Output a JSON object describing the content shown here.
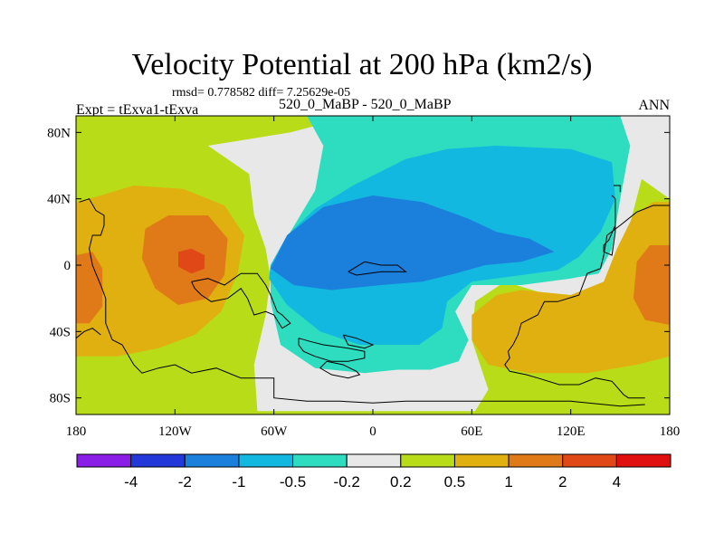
{
  "title": "Velocity Potential at 200 hPa (km2/s)",
  "subtitle": "rmsd= 0.778582  diff= 7.25629e-05",
  "left_label": "Expt = tExva1-tExva",
  "center_label": "520_0_MaBP - 520_0_MaBP",
  "right_label": "ANN",
  "chart_data": {
    "type": "heatmap",
    "subtype": "filled-contour-map",
    "title": "Velocity Potential at 200 hPa (km2/s)",
    "xlabel": "",
    "ylabel": "",
    "xlim": [
      -180,
      180
    ],
    "ylim": [
      -90,
      90
    ],
    "x_ticks": [
      {
        "value": -180,
        "label": "180"
      },
      {
        "value": -120,
        "label": "120W"
      },
      {
        "value": -60,
        "label": "60W"
      },
      {
        "value": 0,
        "label": "0"
      },
      {
        "value": 60,
        "label": "60E"
      },
      {
        "value": 120,
        "label": "120E"
      },
      {
        "value": 180,
        "label": "180"
      }
    ],
    "y_ticks": [
      {
        "value": 80,
        "label": "80N"
      },
      {
        "value": 40,
        "label": "40N"
      },
      {
        "value": 0,
        "label": "0"
      },
      {
        "value": -40,
        "label": "40S"
      },
      {
        "value": -80,
        "label": "80S"
      }
    ],
    "contour_levels": [
      -4,
      -2,
      -1,
      -0.5,
      -0.2,
      0.2,
      0.5,
      1,
      2,
      4
    ],
    "level_labels": [
      "-4",
      "-2",
      "-1",
      "-0.5",
      "-0.2",
      "0.2",
      "0.5",
      "1",
      "2",
      "4"
    ],
    "bin_colors": [
      "#8a1ee6",
      "#2338d8",
      "#1b7fdc",
      "#12b8e0",
      "#2edcc0",
      "#e8e8e8",
      "#b8dc18",
      "#e0b010",
      "#e07a18",
      "#e04818",
      "#e01010"
    ],
    "background_color": "#b8dc18",
    "regions": [
      {
        "level": "0.2..0.5 (neutral)",
        "color": "#e8e8e8",
        "points": [
          [
            -100,
            72
          ],
          [
            -50,
            80
          ],
          [
            -12,
            90
          ],
          [
            55,
            90
          ],
          [
            90,
            90
          ],
          [
            160,
            90
          ],
          [
            180,
            90
          ],
          [
            180,
            40
          ],
          [
            163,
            52
          ],
          [
            152,
            10
          ],
          [
            145,
            -20
          ],
          [
            120,
            -22
          ],
          [
            80,
            -10
          ],
          [
            62,
            -22
          ],
          [
            60,
            -45
          ],
          [
            70,
            -75
          ],
          [
            62,
            -88
          ],
          [
            -70,
            -88
          ],
          [
            -72,
            -60
          ],
          [
            -65,
            -30
          ],
          [
            -62,
            -8
          ],
          [
            -65,
            10
          ],
          [
            -72,
            30
          ],
          [
            -75,
            55
          ]
        ]
      },
      {
        "level": "-0.5..-0.2",
        "color": "#2edcc0",
        "points": [
          [
            -40,
            90
          ],
          [
            150,
            90
          ],
          [
            156,
            72
          ],
          [
            150,
            40
          ],
          [
            145,
            10
          ],
          [
            137,
            -5
          ],
          [
            120,
            -8
          ],
          [
            90,
            -12
          ],
          [
            60,
            -12
          ],
          [
            50,
            -28
          ],
          [
            58,
            -45
          ],
          [
            52,
            -58
          ],
          [
            35,
            -63
          ],
          [
            15,
            -63
          ],
          [
            -5,
            -65
          ],
          [
            -35,
            -62
          ],
          [
            -56,
            -48
          ],
          [
            -62,
            -22
          ],
          [
            -62,
            0
          ],
          [
            -50,
            20
          ],
          [
            -35,
            45
          ],
          [
            -30,
            72
          ]
        ]
      },
      {
        "level": "-1..-0.5",
        "color": "#12b8e0",
        "points": [
          [
            -62,
            0
          ],
          [
            -52,
            18
          ],
          [
            -35,
            34
          ],
          [
            -12,
            48
          ],
          [
            20,
            64
          ],
          [
            45,
            70
          ],
          [
            75,
            72
          ],
          [
            120,
            70
          ],
          [
            145,
            62
          ],
          [
            147,
            40
          ],
          [
            138,
            20
          ],
          [
            125,
            5
          ],
          [
            112,
            -3
          ],
          [
            90,
            -6
          ],
          [
            60,
            -10
          ],
          [
            45,
            -22
          ],
          [
            42,
            -38
          ],
          [
            28,
            -48
          ],
          [
            -8,
            -48
          ],
          [
            -32,
            -40
          ],
          [
            -52,
            -24
          ],
          [
            -63,
            -8
          ]
        ]
      },
      {
        "level": "-2..-1",
        "color": "#1b7fdc",
        "points": [
          [
            -62,
            -2
          ],
          [
            -52,
            18
          ],
          [
            -30,
            35
          ],
          [
            0,
            42
          ],
          [
            30,
            38
          ],
          [
            58,
            28
          ],
          [
            75,
            20
          ],
          [
            95,
            16
          ],
          [
            110,
            8
          ],
          [
            90,
            2
          ],
          [
            68,
            0
          ],
          [
            50,
            -5
          ],
          [
            30,
            -10
          ],
          [
            5,
            -12
          ],
          [
            -25,
            -15
          ],
          [
            -48,
            -12
          ]
        ]
      },
      {
        "level": "0.5..1 west",
        "color": "#e0b010",
        "points": [
          [
            -180,
            38
          ],
          [
            -165,
            42
          ],
          [
            -145,
            48
          ],
          [
            -115,
            46
          ],
          [
            -90,
            36
          ],
          [
            -78,
            18
          ],
          [
            -82,
            -5
          ],
          [
            -92,
            -28
          ],
          [
            -108,
            -42
          ],
          [
            -130,
            -50
          ],
          [
            -155,
            -55
          ],
          [
            -180,
            -55
          ]
        ]
      },
      {
        "level": "1..2 west core",
        "color": "#e07a18",
        "points": [
          [
            -138,
            22
          ],
          [
            -124,
            30
          ],
          [
            -100,
            30
          ],
          [
            -88,
            16
          ],
          [
            -90,
            -6
          ],
          [
            -100,
            -20
          ],
          [
            -118,
            -24
          ],
          [
            -132,
            -14
          ],
          [
            -140,
            4
          ]
        ]
      },
      {
        "level": "1..2 west edge",
        "color": "#e07a18",
        "points": [
          [
            -180,
            6
          ],
          [
            -170,
            8
          ],
          [
            -164,
            -2
          ],
          [
            -164,
            -25
          ],
          [
            -172,
            -35
          ],
          [
            -180,
            -35
          ]
        ]
      },
      {
        "level": "2..4 west peak",
        "color": "#e04818",
        "points": [
          [
            -118,
            8
          ],
          [
            -110,
            10
          ],
          [
            -102,
            6
          ],
          [
            -102,
            -2
          ],
          [
            -110,
            -5
          ],
          [
            -118,
            -1
          ]
        ]
      },
      {
        "level": "0.5..1 east",
        "color": "#e0b010",
        "points": [
          [
            180,
            38
          ],
          [
            170,
            38
          ],
          [
            158,
            30
          ],
          [
            148,
            10
          ],
          [
            140,
            -10
          ],
          [
            120,
            -18
          ],
          [
            90,
            -15
          ],
          [
            75,
            -18
          ],
          [
            60,
            -30
          ],
          [
            60,
            -45
          ],
          [
            70,
            -60
          ],
          [
            95,
            -65
          ],
          [
            130,
            -65
          ],
          [
            160,
            -60
          ],
          [
            180,
            -55
          ]
        ]
      },
      {
        "level": "1..2 east",
        "color": "#e07a18",
        "points": [
          [
            180,
            12
          ],
          [
            168,
            12
          ],
          [
            160,
            2
          ],
          [
            158,
            -20
          ],
          [
            165,
            -33
          ],
          [
            180,
            -36
          ]
        ]
      }
    ],
    "coastlines": [
      [
        [
          -180,
          -44
        ],
        [
          -175,
          -40
        ],
        [
          -170,
          -38
        ],
        [
          -165,
          -42
        ]
      ],
      [
        [
          -178,
          38
        ],
        [
          -172,
          40
        ],
        [
          -168,
          33
        ],
        [
          -163,
          30
        ],
        [
          -163,
          24
        ],
        [
          -165,
          18
        ],
        [
          -170,
          18
        ],
        [
          -172,
          10
        ],
        [
          -170,
          0
        ],
        [
          -168,
          -5
        ],
        [
          -165,
          -12
        ],
        [
          -162,
          -20
        ],
        [
          -162,
          -35
        ],
        [
          -158,
          -45
        ],
        [
          -152,
          -48
        ],
        [
          -145,
          -60
        ],
        [
          -140,
          -65
        ],
        [
          -130,
          -62
        ],
        [
          -120,
          -60
        ],
        [
          -110,
          -65
        ],
        [
          -95,
          -62
        ],
        [
          -80,
          -68
        ],
        [
          -60,
          -68
        ],
        [
          -60,
          -80
        ],
        [
          -40,
          -82
        ],
        [
          -20,
          -82
        ],
        [
          0,
          -83
        ],
        [
          20,
          -82
        ],
        [
          40,
          -82
        ],
        [
          62,
          -82
        ],
        [
          80,
          -82
        ],
        [
          100,
          -82
        ],
        [
          120,
          -82
        ],
        [
          150,
          -85
        ],
        [
          165,
          -84
        ]
      ],
      [
        [
          -110,
          -10
        ],
        [
          -100,
          -8
        ],
        [
          -90,
          -12
        ],
        [
          -80,
          -5
        ],
        [
          -70,
          -5
        ],
        [
          -65,
          -12
        ],
        [
          -62,
          -18
        ],
        [
          -58,
          -28
        ],
        [
          -55,
          -30
        ],
        [
          -50,
          -35
        ],
        [
          -55,
          -38
        ],
        [
          -60,
          -30
        ],
        [
          -65,
          -28
        ],
        [
          -72,
          -30
        ],
        [
          -76,
          -20
        ],
        [
          -80,
          -14
        ],
        [
          -88,
          -20
        ],
        [
          -98,
          -22
        ],
        [
          -104,
          -18
        ],
        [
          -108,
          -14
        ],
        [
          -110,
          -10
        ]
      ],
      [
        [
          -45,
          -44
        ],
        [
          -38,
          -46
        ],
        [
          -30,
          -48
        ],
        [
          -15,
          -50
        ],
        [
          -5,
          -52
        ],
        [
          -5,
          -56
        ],
        [
          -15,
          -58
        ],
        [
          -25,
          -58
        ],
        [
          -35,
          -55
        ],
        [
          -42,
          -52
        ],
        [
          -45,
          -48
        ],
        [
          -45,
          -44
        ]
      ],
      [
        [
          -28,
          -58
        ],
        [
          -18,
          -60
        ],
        [
          -10,
          -64
        ],
        [
          -8,
          -66
        ],
        [
          -15,
          -68
        ],
        [
          -25,
          -66
        ],
        [
          -32,
          -62
        ],
        [
          -28,
          -58
        ]
      ],
      [
        [
          -18,
          -42
        ],
        [
          -10,
          -44
        ],
        [
          0,
          -48
        ],
        [
          -5,
          -50
        ],
        [
          -15,
          -48
        ],
        [
          -18,
          -42
        ]
      ],
      [
        [
          -15,
          -4
        ],
        [
          -5,
          2
        ],
        [
          5,
          0
        ],
        [
          15,
          0
        ],
        [
          20,
          -4
        ],
        [
          5,
          -4
        ],
        [
          -10,
          -6
        ],
        [
          -15,
          -4
        ]
      ],
      [
        [
          180,
          36
        ],
        [
          170,
          36
        ],
        [
          160,
          32
        ],
        [
          150,
          24
        ],
        [
          142,
          18
        ],
        [
          140,
          6
        ],
        [
          138,
          -2
        ],
        [
          130,
          -5
        ],
        [
          125,
          -18
        ],
        [
          112,
          -22
        ],
        [
          104,
          -22
        ],
        [
          100,
          -30
        ],
        [
          90,
          -35
        ],
        [
          88,
          -42
        ],
        [
          85,
          -48
        ],
        [
          82,
          -52
        ],
        [
          83,
          -56
        ],
        [
          80,
          -60
        ],
        [
          83,
          -64
        ],
        [
          93,
          -66
        ],
        [
          100,
          -68
        ],
        [
          113,
          -72
        ],
        [
          125,
          -72
        ],
        [
          135,
          -68
        ],
        [
          145,
          -70
        ],
        [
          152,
          -78
        ],
        [
          155,
          -80
        ],
        [
          165,
          -80
        ]
      ],
      [
        [
          145,
          42
        ],
        [
          147,
          40
        ],
        [
          147,
          24
        ],
        [
          143,
          15
        ],
        [
          140,
          12
        ],
        [
          140,
          8
        ],
        [
          145,
          6
        ],
        [
          147,
          20
        ],
        [
          147,
          36
        ]
      ],
      [
        [
          146,
          48
        ],
        [
          150,
          48
        ],
        [
          150,
          44
        ]
      ]
    ]
  }
}
